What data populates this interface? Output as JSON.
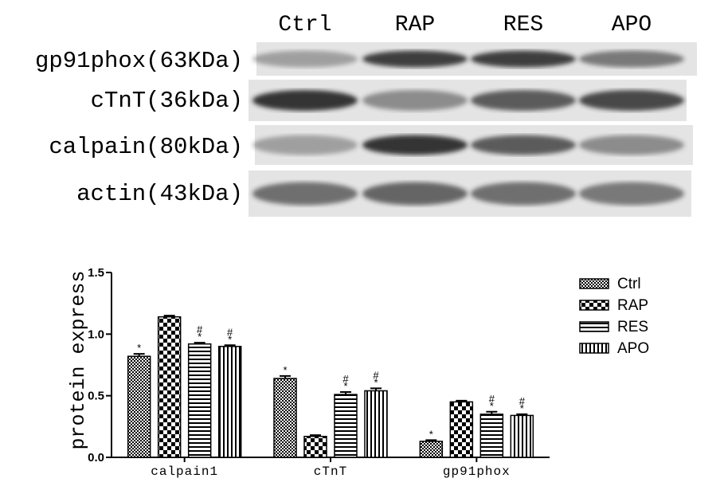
{
  "blot": {
    "lanes": [
      "Ctrl",
      "RAP",
      "RES",
      "APO"
    ],
    "rows": [
      "gp91phox(63KDa)",
      "cTnT(36kDa)",
      "calpain(80kDa)",
      "actin(43kDa)"
    ]
  },
  "chart_data": {
    "type": "bar",
    "y_label": "protein express",
    "categories": [
      "calpain1",
      "cTnT",
      "gp91phox"
    ],
    "series": [
      {
        "name": "Ctrl",
        "pattern": "checker-fine",
        "values": [
          0.82,
          0.64,
          0.13
        ],
        "errors": [
          0.02,
          0.02,
          0.01
        ],
        "annotations": [
          [
            "*"
          ],
          [
            "*"
          ],
          [
            "*"
          ]
        ]
      },
      {
        "name": "RAP",
        "pattern": "checker",
        "values": [
          1.14,
          0.17,
          0.45
        ],
        "errors": [
          0.01,
          0.01,
          0.01
        ],
        "annotations": [
          [],
          [],
          []
        ]
      },
      {
        "name": "RES",
        "pattern": "horizontal",
        "values": [
          0.92,
          0.51,
          0.35
        ],
        "errors": [
          0.01,
          0.02,
          0.02
        ],
        "annotations": [
          [
            "#",
            "*"
          ],
          [
            "#",
            "*"
          ],
          [
            "#",
            "*"
          ]
        ]
      },
      {
        "name": "APO",
        "pattern": "vertical",
        "values": [
          0.9,
          0.54,
          0.34
        ],
        "errors": [
          0.01,
          0.02,
          0.01
        ],
        "annotations": [
          [
            "#",
            "*"
          ],
          [
            "#",
            "*"
          ],
          [
            "#",
            "*"
          ]
        ]
      }
    ],
    "ylim": [
      0,
      1.5
    ],
    "yticks": [
      {
        "value": 0,
        "label": "0.0"
      },
      0.5,
      {
        "value": 1,
        "label": "1.0"
      },
      1.5
    ],
    "legend": "top-right"
  }
}
